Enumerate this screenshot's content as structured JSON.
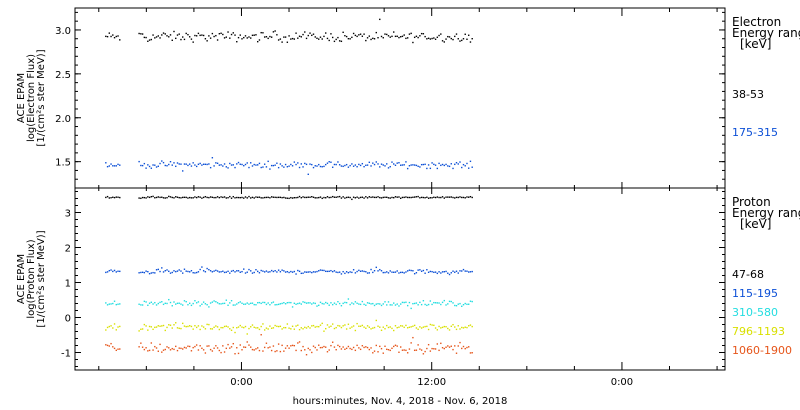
{
  "xlabel": "hours:minutes, Nov.  4, 2018 - Nov.  6, 2018",
  "x_ticks": [
    "0:00",
    "12:00",
    "0:00"
  ],
  "chart_data": [
    {
      "type": "scatter",
      "panel": "electron",
      "ylabel_lines": [
        "ACE EPAM",
        "log(Electron Flux)",
        "[1/(cm²s ster MeV)]"
      ],
      "ylim": [
        1.2,
        3.25
      ],
      "yticks": [
        1.5,
        2.0,
        2.5,
        3.0
      ],
      "ytick_labels": [
        "1.5",
        "2.0",
        "2.5",
        "3.0"
      ],
      "legend_title": [
        "Electron",
        "Energy range",
        "[keV]"
      ],
      "series": [
        {
          "name": "38-53",
          "color": "#000000",
          "mean": 2.93,
          "noise": 0.045,
          "segments": [
            [
              -8.6,
              -7.7
            ],
            [
              -6.5,
              14.6
            ]
          ]
        },
        {
          "name": "175-315",
          "color": "#0b4fd6",
          "mean": 1.47,
          "noise": 0.03,
          "segments": [
            [
              -8.6,
              -7.7
            ],
            [
              -6.5,
              14.6
            ]
          ]
        }
      ]
    },
    {
      "type": "scatter",
      "panel": "proton",
      "ylabel_lines": [
        "ACE EPAM",
        "log(Proton Flux)",
        "[1/(cm²s ster MeV)]"
      ],
      "ylim": [
        -1.5,
        3.7
      ],
      "yticks": [
        -1,
        0,
        1,
        2,
        3
      ],
      "ytick_labels": [
        "-1",
        "0",
        "1",
        "2",
        "3"
      ],
      "legend_title": [
        "Proton",
        "Energy range",
        "[keV]"
      ],
      "series": [
        {
          "name": "47-68",
          "color": "#000000",
          "mean": 3.45,
          "noise": 0.02,
          "segments": [
            [
              -8.6,
              -7.7
            ],
            [
              -6.5,
              14.6
            ]
          ]
        },
        {
          "name": "115-195",
          "color": "#0b4fd6",
          "mean": 1.33,
          "noise": 0.05,
          "segments": [
            [
              -8.6,
              -7.7
            ],
            [
              -6.5,
              14.6
            ]
          ]
        },
        {
          "name": "310-580",
          "color": "#22dde0",
          "mean": 0.42,
          "noise": 0.06,
          "segments": [
            [
              -8.6,
              -7.7
            ],
            [
              -6.5,
              14.6
            ]
          ]
        },
        {
          "name": "796-1193",
          "color": "#d9e000",
          "mean": -0.25,
          "noise": 0.08,
          "segments": [
            [
              -8.6,
              -7.7
            ],
            [
              -6.5,
              14.6
            ]
          ]
        },
        {
          "name": "1060-1900",
          "color": "#e6551a",
          "mean": -0.85,
          "noise": 0.12,
          "segments": [
            [
              -8.6,
              -7.7
            ],
            [
              -6.5,
              14.6
            ]
          ]
        }
      ]
    }
  ],
  "x_domain_hours": [
    -10.5,
    30.5
  ],
  "x_major_ticks_hours": [
    0,
    12,
    24
  ],
  "x_minor_ticks_hours": [
    -9,
    -6,
    -3,
    3,
    6,
    9,
    15,
    18,
    21,
    27,
    30
  ]
}
